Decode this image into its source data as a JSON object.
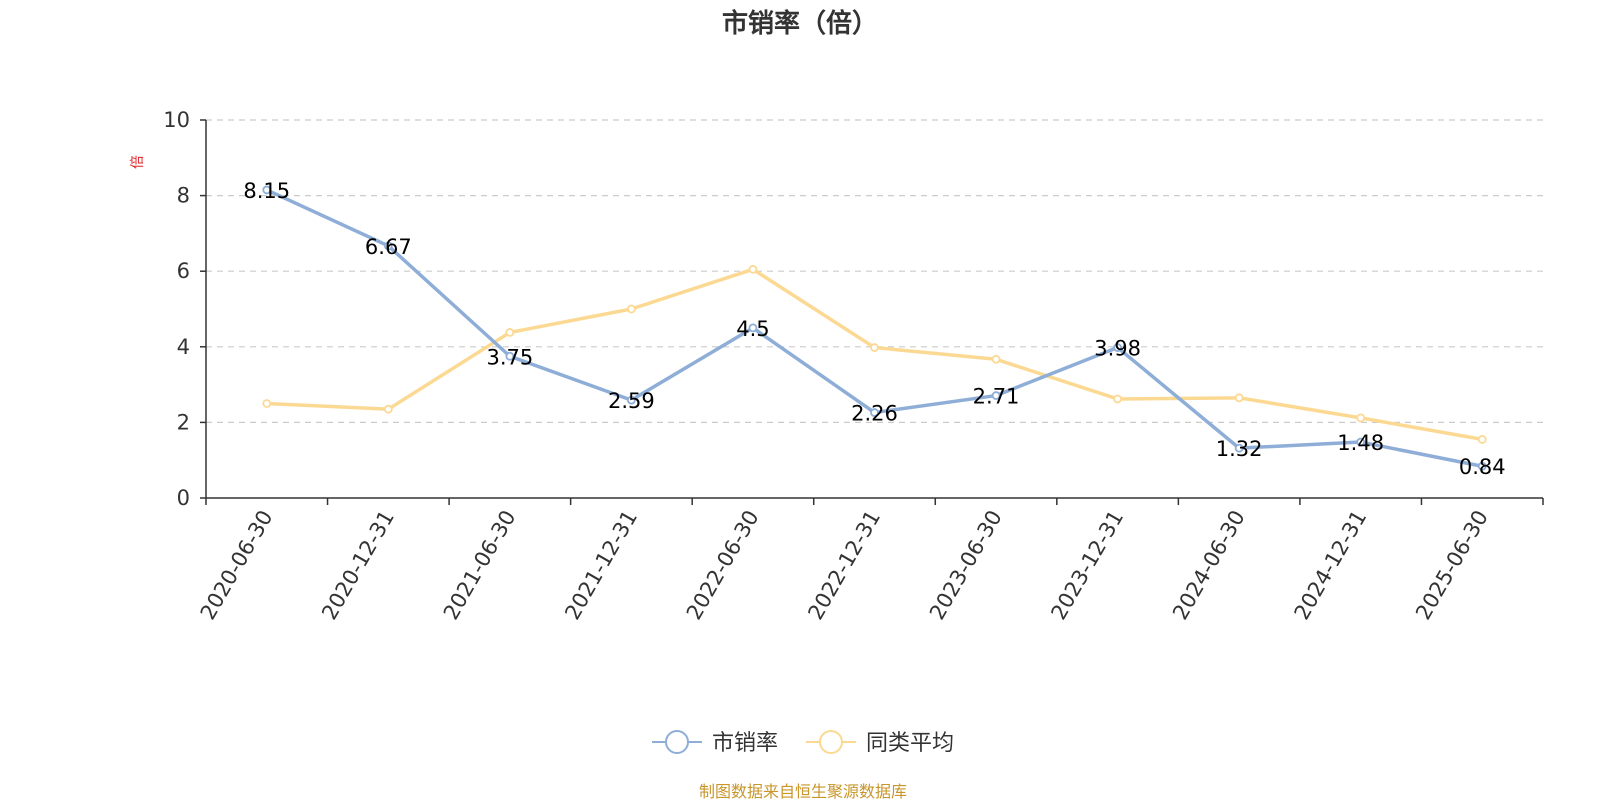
{
  "chart_data": {
    "type": "line",
    "title": "市销率（倍）",
    "ylabel": "倍",
    "ylim": [
      0,
      10
    ],
    "yticks": [
      "0",
      "2",
      "4",
      "6",
      "8",
      "10"
    ],
    "grid": true,
    "legend_position": "bottom-center",
    "categories": [
      "2020-06-30",
      "2020-12-31",
      "2021-06-30",
      "2021-12-31",
      "2022-06-30",
      "2022-12-31",
      "2023-06-30",
      "2023-12-31",
      "2024-06-30",
      "2024-12-31",
      "2025-06-30"
    ],
    "series": [
      {
        "name": "市销率",
        "color": "#8eaed8",
        "values": [
          8.15,
          6.67,
          3.75,
          2.59,
          4.5,
          2.26,
          2.71,
          3.98,
          1.32,
          1.48,
          0.84
        ],
        "labels": [
          "8.15",
          "6.67",
          "3.75",
          "2.59",
          "4.5",
          "2.26",
          "2.71",
          "3.98",
          "1.32",
          "1.48",
          "0.84"
        ]
      },
      {
        "name": "同类平均",
        "color": "#fbd993",
        "values": [
          2.5,
          2.35,
          4.38,
          5.0,
          6.05,
          3.98,
          3.67,
          2.62,
          2.65,
          2.12,
          1.55
        ]
      }
    ],
    "source": "制图数据来自恒生聚源数据库"
  },
  "colors": {
    "axis": "#333333",
    "grid": "#cccccc",
    "ylabel": "#e0262b",
    "source": "#c8962b"
  }
}
